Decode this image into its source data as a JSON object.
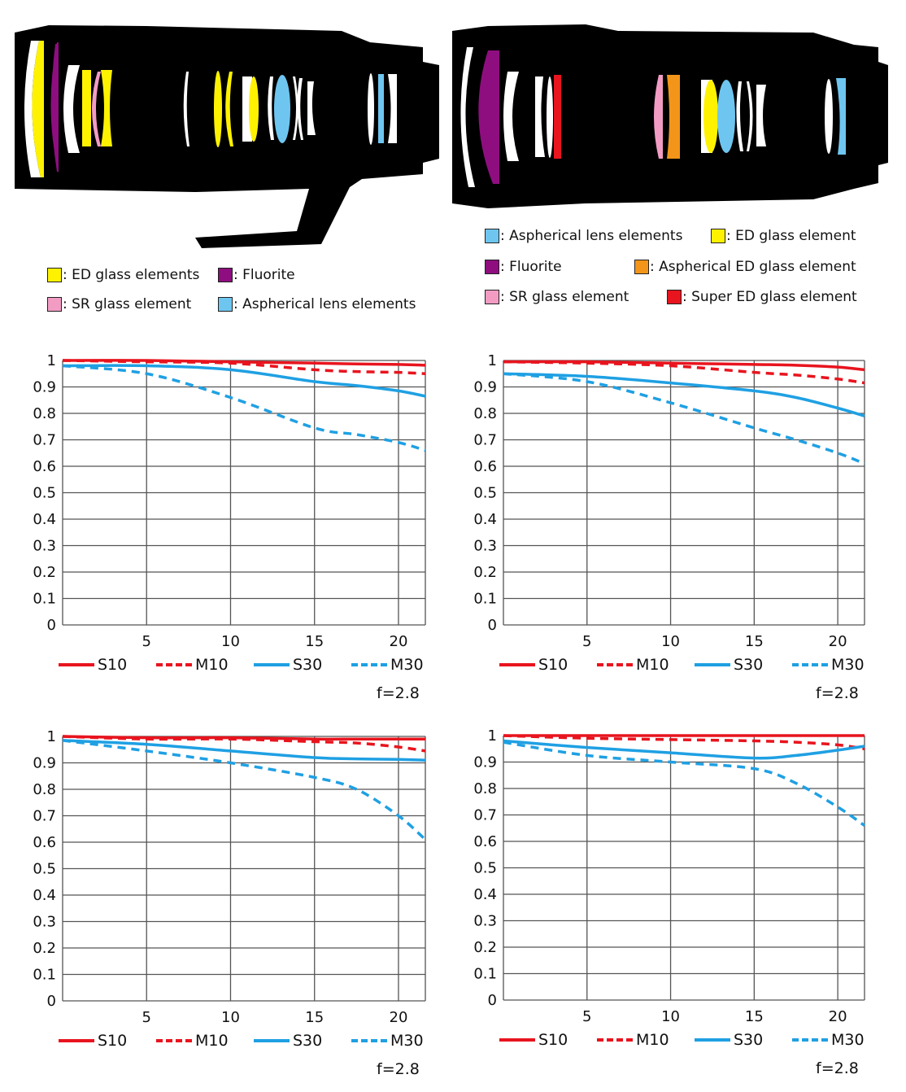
{
  "lens_diagrams": [
    {
      "legend": [
        {
          "label": ": ED glass elements",
          "color": "#FFF200"
        },
        {
          "label": ": Fluorite",
          "color": "#8E0E7F"
        },
        {
          "label": ": SR glass element",
          "color": "#F29CC4"
        },
        {
          "label": ": Aspherical lens elements",
          "color": "#6EC6F0"
        }
      ]
    },
    {
      "legend": [
        {
          "label": ": Aspherical lens elements",
          "color": "#6EC6F0"
        },
        {
          "label": ": ED glass element",
          "color": "#FFF200"
        },
        {
          "label": ": Fluorite",
          "color": "#8E0E7F"
        },
        {
          "label": ": Aspherical ED glass element",
          "color": "#F39519"
        },
        {
          "label": ": SR glass element",
          "color": "#F29CC4"
        },
        {
          "label": ": Super ED glass element",
          "color": "#E8141E"
        }
      ]
    }
  ],
  "colors": {
    "sagittal_red": "#E8141E",
    "blue": "#1FA0E3",
    "grid": "#555555"
  },
  "chart_data": [
    {
      "type": "line",
      "xlim": [
        0,
        21.6
      ],
      "ylim": [
        0,
        1
      ],
      "xticks": [
        "5",
        "10",
        "15",
        "20"
      ],
      "xtick_values": [
        5,
        10,
        15,
        20
      ],
      "yticks": [
        "0",
        "0.1",
        "0.2",
        "0.3",
        "0.4",
        "0.5",
        "0.6",
        "0.7",
        "0.8",
        "0.9",
        "1"
      ],
      "x": [
        0,
        5,
        10,
        15,
        17.5,
        20,
        21.6
      ],
      "series": [
        {
          "name": "S10",
          "values": [
            1.0,
            1.0,
            0.995,
            0.99,
            0.987,
            0.985,
            0.982
          ]
        },
        {
          "name": "M10",
          "values": [
            1.0,
            0.995,
            0.99,
            0.965,
            0.958,
            0.955,
            0.95
          ]
        },
        {
          "name": "S30",
          "values": [
            0.98,
            0.98,
            0.965,
            0.92,
            0.905,
            0.885,
            0.865
          ]
        },
        {
          "name": "M30",
          "values": [
            0.98,
            0.95,
            0.86,
            0.745,
            0.72,
            0.69,
            0.66
          ]
        }
      ],
      "aperture": "f=2.8",
      "grid": true,
      "legend_position": "bottom"
    },
    {
      "type": "line",
      "xlim": [
        0,
        21.6
      ],
      "ylim": [
        0,
        1
      ],
      "xticks": [
        "5",
        "10",
        "15",
        "20"
      ],
      "xtick_values": [
        5,
        10,
        15,
        20
      ],
      "yticks": [
        "0",
        "0.1",
        "0.2",
        "0.3",
        "0.4",
        "0.5",
        "0.6",
        "0.7",
        "0.8",
        "0.9",
        "1"
      ],
      "x": [
        0,
        5,
        10,
        15,
        17.5,
        20,
        21.6
      ],
      "series": [
        {
          "name": "S10",
          "values": [
            0.995,
            0.995,
            0.99,
            0.985,
            0.982,
            0.975,
            0.965
          ]
        },
        {
          "name": "M10",
          "values": [
            0.995,
            0.99,
            0.98,
            0.955,
            0.945,
            0.93,
            0.915
          ]
        },
        {
          "name": "S30",
          "values": [
            0.95,
            0.94,
            0.915,
            0.885,
            0.86,
            0.82,
            0.79
          ]
        },
        {
          "name": "M30",
          "values": [
            0.95,
            0.92,
            0.84,
            0.745,
            0.7,
            0.65,
            0.61
          ]
        }
      ],
      "aperture": "f=2.8",
      "grid": true,
      "legend_position": "bottom"
    },
    {
      "type": "line",
      "xlim": [
        0,
        21.6
      ],
      "ylim": [
        0,
        1
      ],
      "xticks": [
        "5",
        "10",
        "15",
        "20"
      ],
      "xtick_values": [
        5,
        10,
        15,
        20
      ],
      "yticks": [
        "0",
        "0.1",
        "0.2",
        "0.3",
        "0.4",
        "0.5",
        "0.6",
        "0.7",
        "0.8",
        "0.9",
        "1"
      ],
      "x": [
        0,
        5,
        10,
        15,
        17.5,
        20,
        21.6
      ],
      "series": [
        {
          "name": "S10",
          "values": [
            1.0,
            0.995,
            0.995,
            0.99,
            0.99,
            0.99,
            0.99
          ]
        },
        {
          "name": "M10",
          "values": [
            1.0,
            0.99,
            0.99,
            0.98,
            0.975,
            0.96,
            0.945
          ]
        },
        {
          "name": "S30",
          "values": [
            0.985,
            0.97,
            0.945,
            0.92,
            0.915,
            0.913,
            0.91
          ]
        },
        {
          "name": "M30",
          "values": [
            0.985,
            0.945,
            0.9,
            0.845,
            0.8,
            0.7,
            0.61
          ]
        }
      ],
      "aperture": "f=2.8",
      "grid": true,
      "legend_position": "bottom"
    },
    {
      "type": "line",
      "xlim": [
        0,
        21.6
      ],
      "ylim": [
        0,
        1
      ],
      "xticks": [
        "5",
        "10",
        "15",
        "20"
      ],
      "xtick_values": [
        5,
        10,
        15,
        20
      ],
      "yticks": [
        "0",
        "0.1",
        "0.2",
        "0.3",
        "0.4",
        "0.5",
        "0.6",
        "0.7",
        "0.8",
        "0.9",
        "1"
      ],
      "x": [
        0,
        5,
        10,
        15,
        17.5,
        20,
        21.6
      ],
      "series": [
        {
          "name": "S10",
          "values": [
            1.0,
            1.0,
            1.0,
            1.0,
            1.0,
            1.0,
            1.0
          ]
        },
        {
          "name": "M10",
          "values": [
            1.0,
            0.99,
            0.985,
            0.98,
            0.975,
            0.965,
            0.95
          ]
        },
        {
          "name": "S30",
          "values": [
            0.98,
            0.955,
            0.935,
            0.915,
            0.925,
            0.945,
            0.96
          ]
        },
        {
          "name": "M30",
          "values": [
            0.975,
            0.925,
            0.9,
            0.875,
            0.82,
            0.73,
            0.66
          ]
        }
      ],
      "aperture": "f=2.8",
      "grid": true,
      "legend_position": "bottom"
    }
  ]
}
